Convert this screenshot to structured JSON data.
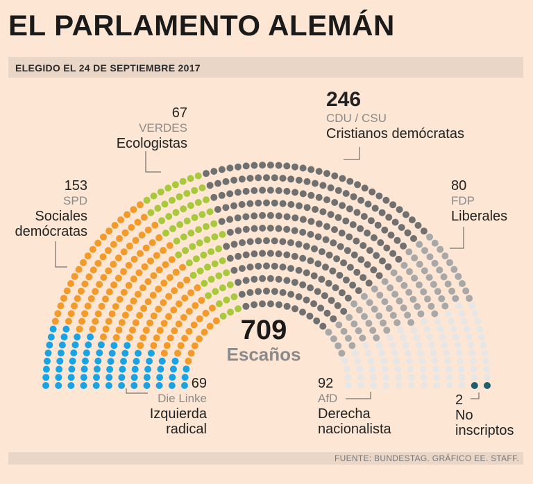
{
  "header": {
    "title": "EL PARLAMENTO ALEMÁN",
    "subtitle": "ELEGIDO EL 24 DE SEPTIEMBRE 2017"
  },
  "center": {
    "total": "709",
    "label": "Escaños"
  },
  "source": "FUENTE: BUNDESTAG. GRÁFICO EE. STAFF.",
  "labels": {
    "linke": {
      "count": "69",
      "abbr": "Die Linke",
      "line1": "Izquierda",
      "line2": "radical"
    },
    "spd": {
      "count": "153",
      "abbr": "SPD",
      "line1": "Sociales",
      "line2": "demócratas"
    },
    "verdes": {
      "count": "67",
      "abbr": "VERDES",
      "line1": "Ecologistas"
    },
    "cdu": {
      "count": "246",
      "abbr": "CDU / CSU",
      "line1": "Cristianos demócratas"
    },
    "fdp": {
      "count": "80",
      "abbr": "FDP",
      "line1": "Liberales"
    },
    "afd": {
      "count": "92",
      "abbr": "AfD",
      "line1": "Derecha",
      "line2": "nacionalista"
    },
    "ni": {
      "count": "2",
      "line1": "No",
      "line2": "inscriptos"
    }
  },
  "chart_data": {
    "type": "parliament",
    "title": "EL PARLAMENTO ALEMÁN",
    "subtitle": "ELEGIDO EL 24 DE SEPTIEMBRE 2017",
    "total": 709,
    "unit": "Escaños",
    "series": [
      {
        "name": "Die Linke",
        "description": "Izquierda radical",
        "seats": 69,
        "color": "#1aa3e3"
      },
      {
        "name": "SPD",
        "description": "Sociales demócratas",
        "seats": 153,
        "color": "#f39a2b"
      },
      {
        "name": "VERDES",
        "description": "Ecologistas",
        "seats": 67,
        "color": "#a9c93c"
      },
      {
        "name": "CDU / CSU",
        "description": "Cristianos demócratas",
        "seats": 246,
        "color": "#707070"
      },
      {
        "name": "FDP",
        "description": "Liberales",
        "seats": 80,
        "color": "#a8a8a8"
      },
      {
        "name": "AfD",
        "description": "Derecha nacionalista",
        "seats": 92,
        "color": "#e6e6e6"
      },
      {
        "name": "No inscriptos",
        "description": "No inscriptos",
        "seats": 2,
        "color": "#1f5e6e"
      }
    ]
  }
}
